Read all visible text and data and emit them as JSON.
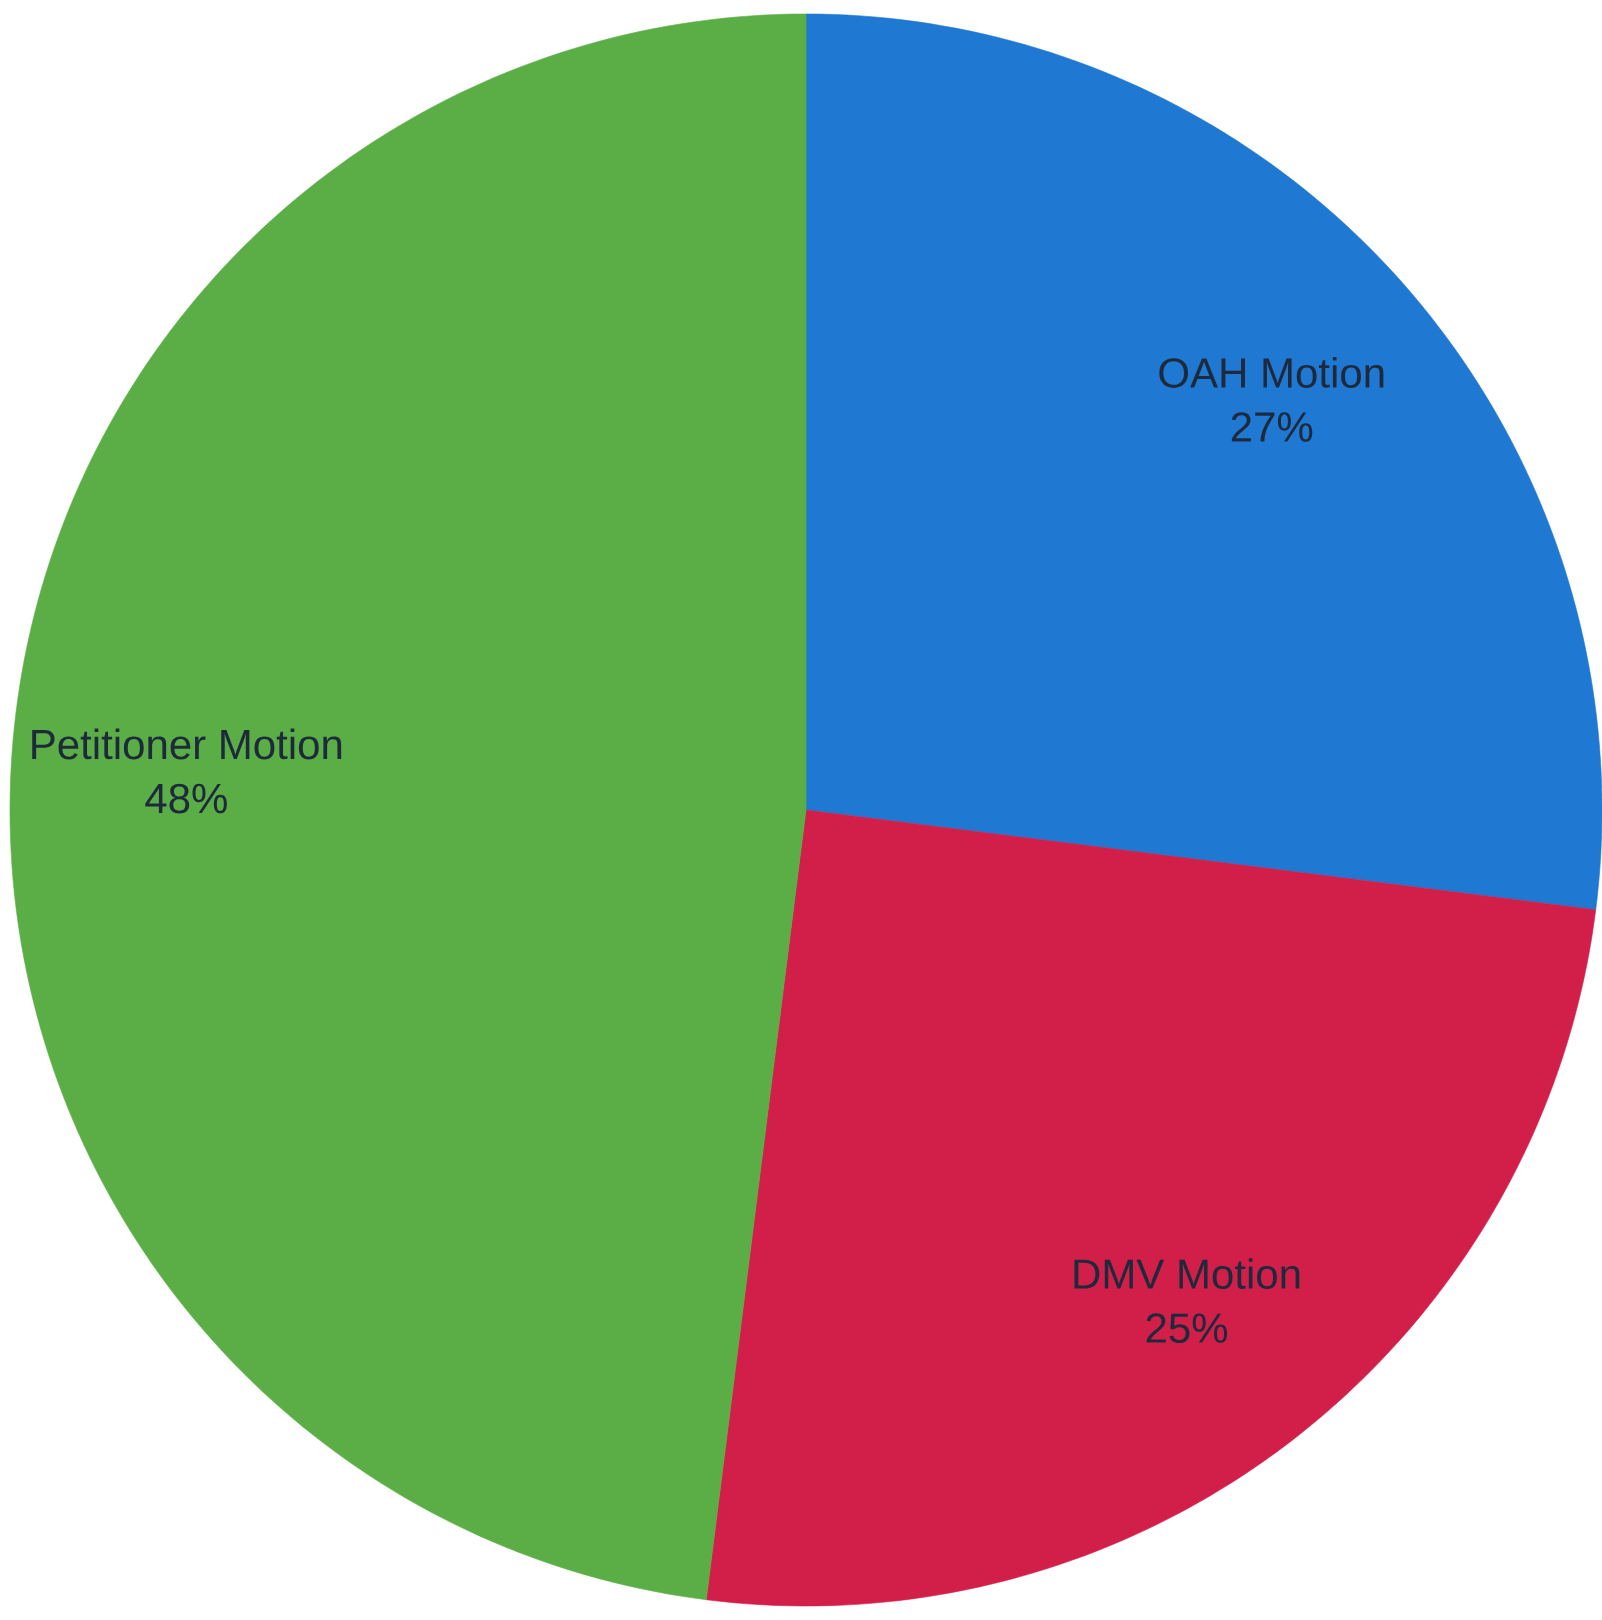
{
  "chart_data": {
    "type": "pie",
    "categories": [
      "OAH Motion",
      "DMV Motion",
      "Petitioner Motion"
    ],
    "values": [
      27,
      25,
      48
    ],
    "value_labels": [
      "27%",
      "25%",
      "48%"
    ],
    "colors": [
      "#1f78d2",
      "#d21f4a",
      "#5bae45"
    ]
  }
}
